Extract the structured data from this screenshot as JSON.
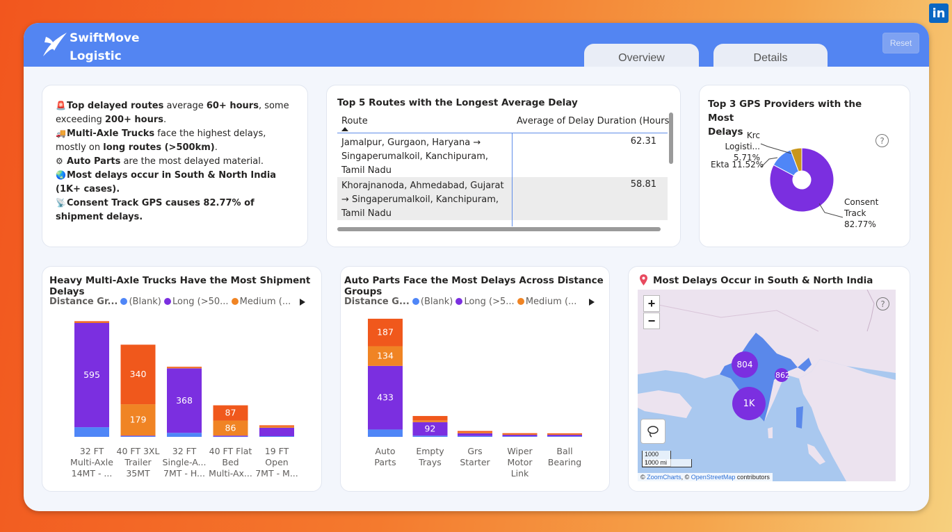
{
  "app": {
    "logo_line1": "SwiftMove",
    "logo_line2": "Logistic",
    "tabs": [
      "Overview",
      "Details"
    ],
    "reset_label": "Reset",
    "linkedin_badge": "in"
  },
  "insights": [
    {
      "icon": "siren-icon",
      "parts": [
        [
          "b",
          "Top delayed routes"
        ],
        [
          "t",
          " average "
        ],
        [
          "b",
          "60+ hours"
        ],
        [
          "t",
          ", some exceeding "
        ],
        [
          "b",
          "200+ hours"
        ],
        [
          "t",
          "."
        ]
      ]
    },
    {
      "icon": "truck-icon",
      "parts": [
        [
          "b",
          "Multi-Axle Trucks"
        ],
        [
          "t",
          " face the highest delays, mostly on "
        ],
        [
          "b",
          "long routes (>500km)"
        ],
        [
          "t",
          "."
        ]
      ]
    },
    {
      "icon": "gear-icon",
      "parts": [
        [
          "b",
          "Auto Parts"
        ],
        [
          "t",
          " are the most delayed material."
        ]
      ]
    },
    {
      "icon": "globe-icon",
      "parts": [
        [
          "b",
          "Most delays occur in South & North India (1K+ cases)."
        ]
      ]
    },
    {
      "icon": "satellite-icon",
      "parts": [
        [
          "b",
          "Consent Track GPS causes 82.77% of shipment delays."
        ]
      ]
    }
  ],
  "routes_table": {
    "title": "Top 5 Routes with the Longest Average Delay",
    "col_route": "Route",
    "col_value": "Average of Delay Duration (Hours)",
    "rows": [
      {
        "route": "Jamalpur, Gurgaon, Haryana → Singaperumalkoil, Kanchipuram, Tamil Nadu",
        "value": "62.31"
      },
      {
        "route": "Khorajnanoda, Ahmedabad, Gujarat → Singaperumalkoil, Kanchipuram, Tamil Nadu",
        "value": "58.81"
      }
    ]
  },
  "gps": {
    "title_line1": "Top 3 GPS Providers with the Most",
    "title_line2": "Delays",
    "labels": {
      "krc_name": "Krc Logisti...",
      "krc_pct": "5.71%",
      "ekta": "Ekta 11.52%",
      "consent_line1": "Consent",
      "consent_line2": "Track",
      "consent_pct": "82.77%"
    },
    "help": "?"
  },
  "map": {
    "title": "Most Delays Occur in South & North India",
    "zoom_in": "+",
    "zoom_out": "−",
    "scale_km": "1000 km",
    "scale_mi": "1000 mi",
    "attrib_prefix": "© ",
    "attrib_zc": "ZoomCharts",
    "attrib_mid": ", © ",
    "attrib_osm": "OpenStreetMap",
    "attrib_suffix": " contributors",
    "clusters": [
      {
        "label": "804",
        "kind": "north"
      },
      {
        "label": "862",
        "kind": "east"
      },
      {
        "label": "1K",
        "kind": "south"
      }
    ],
    "help": "?"
  },
  "legend": {
    "trucks": {
      "title": "Distance Gr...",
      "items": [
        "(Blank)",
        "Long (>50...",
        "Medium (..."
      ]
    },
    "parts": {
      "title": "Distance G...",
      "items": [
        "(Blank)",
        "Long (>5...",
        "Medium (..."
      ]
    }
  },
  "chart_data": [
    {
      "type": "bar",
      "title": "Heavy Multi-Axle Trucks Have the Most Shipment Delays",
      "stacked": true,
      "legend_title": "Distance Gr...",
      "categories": [
        [
          "32 FT",
          "Multi-Axle",
          "14MT - ..."
        ],
        [
          "40 FT 3XL",
          "Trailer",
          "35MT"
        ],
        [
          "32 FT",
          "Single-A...",
          "7MT - H..."
        ],
        [
          "40 FT Flat",
          "Bed",
          "Multi-Ax..."
        ],
        [
          "19 FT",
          "Open",
          "7MT - M..."
        ]
      ],
      "ymax": 650,
      "series": [
        {
          "name": "(Blank)",
          "color": "#4f86f7",
          "values": [
            55,
            4,
            23,
            2,
            4
          ]
        },
        {
          "name": "Long (>50...",
          "color": "#7b2fe0",
          "values": [
            595,
            3,
            368,
            5,
            48
          ]
        },
        {
          "name": "Medium (...",
          "color": "#f08424",
          "values": [
            4,
            179,
            5,
            86,
            8
          ]
        },
        {
          "name": "",
          "color": "#f0581c",
          "values": [
            6,
            340,
            4,
            87,
            6
          ]
        }
      ],
      "data_labels": [
        {
          "bar": 0,
          "series": 1,
          "text": "595"
        },
        {
          "bar": 1,
          "series": 3,
          "text": "340"
        },
        {
          "bar": 1,
          "series": 2,
          "text": "179"
        },
        {
          "bar": 2,
          "series": 1,
          "text": "368"
        },
        {
          "bar": 3,
          "series": 3,
          "text": "87"
        },
        {
          "bar": 3,
          "series": 2,
          "text": "86"
        }
      ]
    },
    {
      "type": "bar",
      "title": "Auto Parts Face the Most Delays Across Distance Groups",
      "stacked": true,
      "legend_title": "Distance G...",
      "categories": [
        [
          "Auto",
          "Parts"
        ],
        [
          "Empty",
          "Trays"
        ],
        [
          "Grs",
          "Starter"
        ],
        [
          "Wiper",
          "Motor",
          "Link"
        ],
        [
          "Ball",
          "Bearing"
        ]
      ],
      "ymax": 780,
      "series": [
        {
          "name": "(Blank)",
          "color": "#4f86f7",
          "values": [
            50,
            8,
            6,
            4,
            4
          ]
        },
        {
          "name": "Long (>5...",
          "color": "#7b2fe0",
          "values": [
            433,
            92,
            18,
            10,
            10
          ]
        },
        {
          "name": "Medium (...",
          "color": "#f08424",
          "values": [
            134,
            12,
            6,
            5,
            5
          ]
        },
        {
          "name": "",
          "color": "#f0581c",
          "values": [
            187,
            30,
            10,
            6,
            5
          ]
        }
      ],
      "data_labels": [
        {
          "bar": 0,
          "series": 3,
          "text": "187"
        },
        {
          "bar": 0,
          "series": 2,
          "text": "134"
        },
        {
          "bar": 0,
          "series": 1,
          "text": "433"
        },
        {
          "bar": 1,
          "series": 1,
          "text": "92"
        }
      ]
    },
    {
      "type": "pie",
      "title": "Top 3 GPS Providers with the Most Delays",
      "donut": true,
      "slices": [
        {
          "name": "Consent Track",
          "value": 82.77,
          "color": "#7b2fe0"
        },
        {
          "name": "Krc Logisti...",
          "value": 5.71,
          "color": "#c9961a"
        },
        {
          "name": "Ekta",
          "value": 11.52,
          "color": "#4f86f7"
        }
      ]
    }
  ]
}
